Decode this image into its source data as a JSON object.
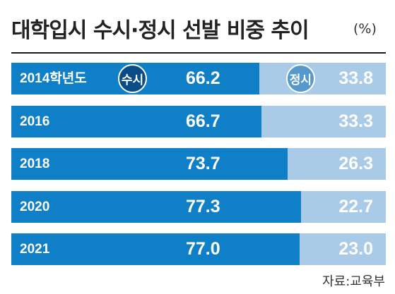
{
  "title": "대학입시 수시·정시 선발 비중 추이",
  "unit": "(%)",
  "source": "자료:교육부",
  "colors": {
    "susi": "#0f7fc8",
    "jeongsi": "#a9cbe7"
  },
  "chart_data": {
    "type": "bar",
    "orientation": "horizontal-stacked",
    "title": "대학입시 수시·정시 선발 비중 추이",
    "unit": "(%)",
    "categories": [
      "2014학년도",
      "2016",
      "2018",
      "2020",
      "2021"
    ],
    "series": [
      {
        "name": "수시",
        "values": [
          66.2,
          66.7,
          73.7,
          77.3,
          77.0
        ],
        "labels": [
          "66.2",
          "66.7",
          "73.7",
          "77.3",
          "77.0"
        ]
      },
      {
        "name": "정시",
        "values": [
          33.8,
          33.3,
          26.3,
          22.7,
          23.0
        ],
        "labels": [
          "33.8",
          "33.3",
          "26.3",
          "22.7",
          "23.0"
        ]
      }
    ],
    "xlim": [
      0,
      100
    ]
  }
}
